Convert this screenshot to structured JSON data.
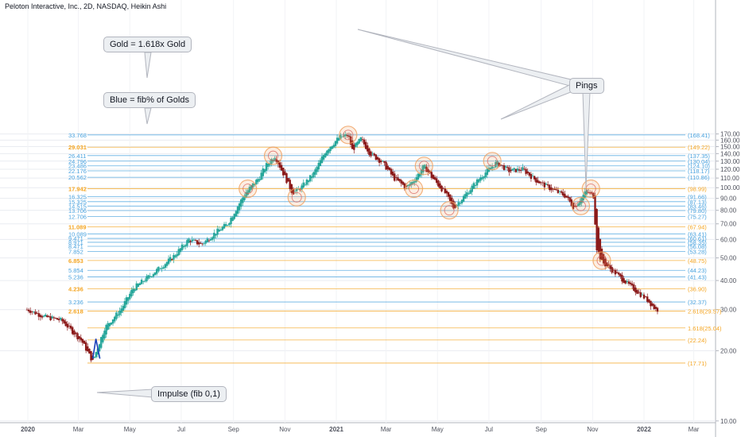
{
  "header": {
    "title": "Peloton Interactive, Inc., 2D, NASDAQ, Heikin Ashi"
  },
  "annotations": {
    "gold_note": "Gold = 1.618x Gold",
    "blue_note": "Blue = fib% of Golds",
    "pings": "Pings",
    "impulse": "Impulse (fib 0,1)"
  },
  "colors": {
    "up": "#26a69a",
    "down": "#8b1a1a",
    "gold": "#f5a623",
    "blue": "#4aa3df",
    "grid": "#e9ecf1",
    "axis_text": "#50535e",
    "ping": "#f0a060"
  },
  "chart_data": {
    "type": "candlestick",
    "title": "Peloton Interactive, Inc., 2D, NASDAQ, Heikin Ashi",
    "y_scale": "log",
    "ylim": [
      10,
      180
    ],
    "y_ticks": [
      "10.00",
      "20.00",
      "30.00",
      "40.00",
      "50.00",
      "60.00",
      "70.00",
      "80.00",
      "90.00",
      "100.00",
      "110.00",
      "120.00",
      "130.00",
      "140.00",
      "150.00",
      "160.00",
      "170.00"
    ],
    "x_ticks": [
      "2020",
      "Mar",
      "May",
      "Jul",
      "Sep",
      "Nov",
      "2021",
      "Mar",
      "May",
      "Jul",
      "Sep",
      "Nov",
      "2022",
      "Mar"
    ],
    "fib_levels": [
      {
        "left": "33.768",
        "right": "(168.41)",
        "value": 168.41,
        "kind": "blue"
      },
      {
        "left": "29.031",
        "right": "(149.22)",
        "value": 149.22,
        "kind": "gold"
      },
      {
        "left": "26.411",
        "right": "(137.35)",
        "value": 137.35,
        "kind": "blue"
      },
      {
        "left": "24.796",
        "right": "(130.04)",
        "value": 130.04,
        "kind": "blue"
      },
      {
        "left": "23.486",
        "right": "(124.10)",
        "value": 124.1,
        "kind": "blue"
      },
      {
        "left": "22.176",
        "right": "(118.17)",
        "value": 118.17,
        "kind": "blue"
      },
      {
        "left": "20.562",
        "right": "(110.86)",
        "value": 110.86,
        "kind": "blue"
      },
      {
        "left": "17.942",
        "right": "(98.99)",
        "value": 98.99,
        "kind": "gold"
      },
      {
        "left": "16.325",
        "right": "(91.66)",
        "value": 91.66,
        "kind": "blue"
      },
      {
        "left": "15.325",
        "right": "(87.13)",
        "value": 87.13,
        "kind": "blue"
      },
      {
        "left": "14.515",
        "right": "(83.46)",
        "value": 83.46,
        "kind": "blue"
      },
      {
        "left": "13.706",
        "right": "(79.80)",
        "value": 79.8,
        "kind": "blue"
      },
      {
        "left": "12.706",
        "right": "(75.27)",
        "value": 75.27,
        "kind": "blue"
      },
      {
        "left": "11.089",
        "right": "(67.94)",
        "value": 67.94,
        "kind": "gold"
      },
      {
        "left": "10.089",
        "right": "(63.41)",
        "value": 63.41,
        "kind": "blue"
      },
      {
        "left": "9.471",
        "right": "(60.61)",
        "value": 60.61,
        "kind": "blue"
      },
      {
        "left": "8.971",
        "right": "(58.35)",
        "value": 58.35,
        "kind": "blue"
      },
      {
        "left": "8.471",
        "right": "(56.08)",
        "value": 56.08,
        "kind": "blue"
      },
      {
        "left": "7.852",
        "right": "(53.28)",
        "value": 53.28,
        "kind": "blue"
      },
      {
        "left": "6.853",
        "right": "(48.75)",
        "value": 48.75,
        "kind": "gold"
      },
      {
        "left": "5.854",
        "right": "(44.23)",
        "value": 44.23,
        "kind": "blue"
      },
      {
        "left": "5.236",
        "right": "(41.43)",
        "value": 41.43,
        "kind": "blue"
      },
      {
        "left": "4.236",
        "right": "(36.90)",
        "value": 36.9,
        "kind": "gold"
      },
      {
        "left": "3.236",
        "right": "(32.37)",
        "value": 32.37,
        "kind": "blue"
      },
      {
        "left": "2.618",
        "right": "2.618(29.57)",
        "value": 29.57,
        "kind": "gold"
      },
      {
        "left": "",
        "right": "1.618(25.04)",
        "value": 25.04,
        "kind": "gold"
      },
      {
        "left": "",
        "right": "(22.24)",
        "value": 22.24,
        "kind": "gold"
      },
      {
        "left": "",
        "right": "(17.71)",
        "value": 17.71,
        "kind": "gold"
      }
    ],
    "price_anchors": [
      [
        "2020-01-01",
        30
      ],
      [
        "2020-01-20",
        28
      ],
      [
        "2020-02-10",
        27
      ],
      [
        "2020-03-05",
        22
      ],
      [
        "2020-03-18",
        18
      ],
      [
        "2020-04-01",
        25
      ],
      [
        "2020-04-20",
        30
      ],
      [
        "2020-05-05",
        37
      ],
      [
        "2020-05-25",
        42
      ],
      [
        "2020-06-20",
        50
      ],
      [
        "2020-07-10",
        60
      ],
      [
        "2020-07-25",
        57
      ],
      [
        "2020-08-10",
        64
      ],
      [
        "2020-08-25",
        70
      ],
      [
        "2020-09-15",
        95
      ],
      [
        "2020-10-01",
        110
      ],
      [
        "2020-10-10",
        125
      ],
      [
        "2020-10-20",
        137
      ],
      [
        "2020-11-10",
        95
      ],
      [
        "2020-11-20",
        100
      ],
      [
        "2020-12-05",
        115
      ],
      [
        "2020-12-20",
        145
      ],
      [
        "2021-01-05",
        165
      ],
      [
        "2021-01-15",
        168
      ],
      [
        "2021-01-20",
        145
      ],
      [
        "2021-01-30",
        162
      ],
      [
        "2021-02-10",
        140
      ],
      [
        "2021-02-25",
        128
      ],
      [
        "2021-03-10",
        110
      ],
      [
        "2021-03-25",
        100
      ],
      [
        "2021-04-05",
        110
      ],
      [
        "2021-04-15",
        124
      ],
      [
        "2021-04-25",
        110
      ],
      [
        "2021-05-10",
        95
      ],
      [
        "2021-05-20",
        82
      ],
      [
        "2021-06-05",
        95
      ],
      [
        "2021-06-20",
        110
      ],
      [
        "2021-07-01",
        120
      ],
      [
        "2021-07-10",
        128
      ],
      [
        "2021-07-25",
        118
      ],
      [
        "2021-08-10",
        120
      ],
      [
        "2021-08-25",
        108
      ],
      [
        "2021-09-10",
        100
      ],
      [
        "2021-09-30",
        92
      ],
      [
        "2021-10-10",
        82
      ],
      [
        "2021-10-25",
        97
      ],
      [
        "2021-11-02",
        92
      ],
      [
        "2021-11-06",
        55
      ],
      [
        "2021-11-12",
        48
      ],
      [
        "2021-11-25",
        44
      ],
      [
        "2021-12-15",
        38
      ],
      [
        "2022-01-05",
        33
      ],
      [
        "2022-01-15",
        30
      ]
    ],
    "ping_points": [
      [
        "2021-01-15",
        168.4
      ],
      [
        "2020-10-18",
        137
      ],
      [
        "2020-09-18",
        99
      ],
      [
        "2020-11-15",
        91
      ],
      [
        "2021-04-15",
        124
      ],
      [
        "2021-04-03",
        99
      ],
      [
        "2021-05-15",
        80
      ],
      [
        "2021-07-05",
        130
      ],
      [
        "2021-10-30",
        99
      ],
      [
        "2021-10-18",
        83.5
      ],
      [
        "2021-11-12",
        48.7
      ]
    ]
  }
}
